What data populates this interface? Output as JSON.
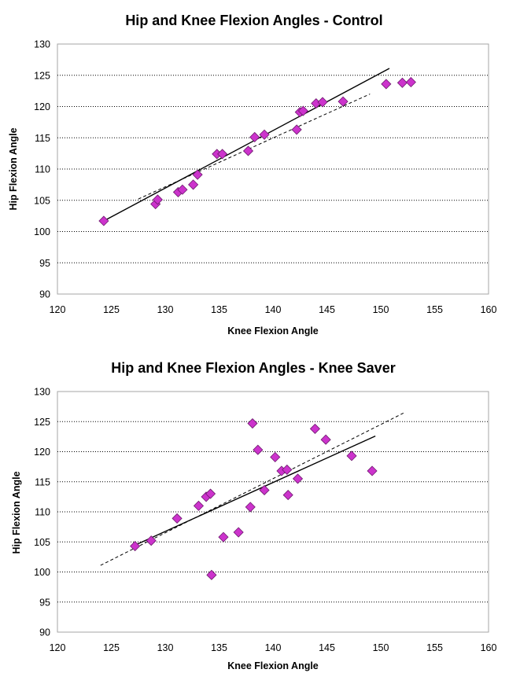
{
  "chart_data": [
    {
      "type": "scatter",
      "title": "Hip and Knee Flexion Angles - Control",
      "xlabel": "Knee Flexion Angle",
      "ylabel": "Hip Flexion Angle",
      "xlim": [
        120,
        160
      ],
      "ylim": [
        90,
        130
      ],
      "xticks": [
        "120",
        "125",
        "130",
        "135",
        "140",
        "145",
        "150",
        "155",
        "160"
      ],
      "yticks": [
        "90",
        "95",
        "100",
        "105",
        "110",
        "115",
        "120",
        "125",
        "130"
      ],
      "grid": "horizontal dotted",
      "marker_color": "#CC33CC",
      "points": [
        [
          124.3,
          101.7
        ],
        [
          129.1,
          104.4
        ],
        [
          129.3,
          105.1
        ],
        [
          131.2,
          106.3
        ],
        [
          131.6,
          106.7
        ],
        [
          132.6,
          107.5
        ],
        [
          133.0,
          109.1
        ],
        [
          134.8,
          112.4
        ],
        [
          135.3,
          112.4
        ],
        [
          137.7,
          112.9
        ],
        [
          138.3,
          115.1
        ],
        [
          139.2,
          115.5
        ],
        [
          142.2,
          116.3
        ],
        [
          142.5,
          119.1
        ],
        [
          142.8,
          119.3
        ],
        [
          144.0,
          120.5
        ],
        [
          144.6,
          120.7
        ],
        [
          146.5,
          120.8
        ],
        [
          150.5,
          123.6
        ],
        [
          152.0,
          123.8
        ],
        [
          152.8,
          123.9
        ]
      ],
      "trendlines": [
        {
          "style": "solid",
          "x": [
            124.3,
            150.8
          ],
          "y": [
            101.7,
            126.1
          ]
        },
        {
          "style": "dashed",
          "x": [
            127.5,
            149.0
          ],
          "y": [
            105.2,
            122.0
          ]
        }
      ]
    },
    {
      "type": "scatter",
      "title": "Hip and Knee Flexion Angles - Knee Saver",
      "xlabel": "Knee Flexion Angle",
      "ylabel": "Hip Flexion Angle",
      "xlim": [
        120,
        160
      ],
      "ylim": [
        90,
        130
      ],
      "xticks": [
        "120",
        "125",
        "130",
        "135",
        "140",
        "145",
        "150",
        "155",
        "160"
      ],
      "yticks": [
        "90",
        "95",
        "100",
        "105",
        "110",
        "115",
        "120",
        "125",
        "130"
      ],
      "grid": "horizontal dotted",
      "marker_color": "#CC33CC",
      "points": [
        [
          127.2,
          104.3
        ],
        [
          128.7,
          105.2
        ],
        [
          131.1,
          108.9
        ],
        [
          133.1,
          111.0
        ],
        [
          133.8,
          112.5
        ],
        [
          134.2,
          113.0
        ],
        [
          134.3,
          99.5
        ],
        [
          135.4,
          105.8
        ],
        [
          136.8,
          106.6
        ],
        [
          137.9,
          110.8
        ],
        [
          138.1,
          124.7
        ],
        [
          138.6,
          120.3
        ],
        [
          139.2,
          113.6
        ],
        [
          140.2,
          119.1
        ],
        [
          140.8,
          116.8
        ],
        [
          141.3,
          117.0
        ],
        [
          141.4,
          112.8
        ],
        [
          142.3,
          115.5
        ],
        [
          143.9,
          123.8
        ],
        [
          144.9,
          122.0
        ],
        [
          147.3,
          119.3
        ],
        [
          149.2,
          116.8
        ]
      ],
      "trendlines": [
        {
          "style": "solid",
          "x": [
            127.0,
            149.5
          ],
          "y": [
            104.3,
            122.6
          ]
        },
        {
          "style": "dashed",
          "x": [
            124.0,
            152.2
          ],
          "y": [
            101.1,
            126.5
          ]
        }
      ]
    }
  ]
}
